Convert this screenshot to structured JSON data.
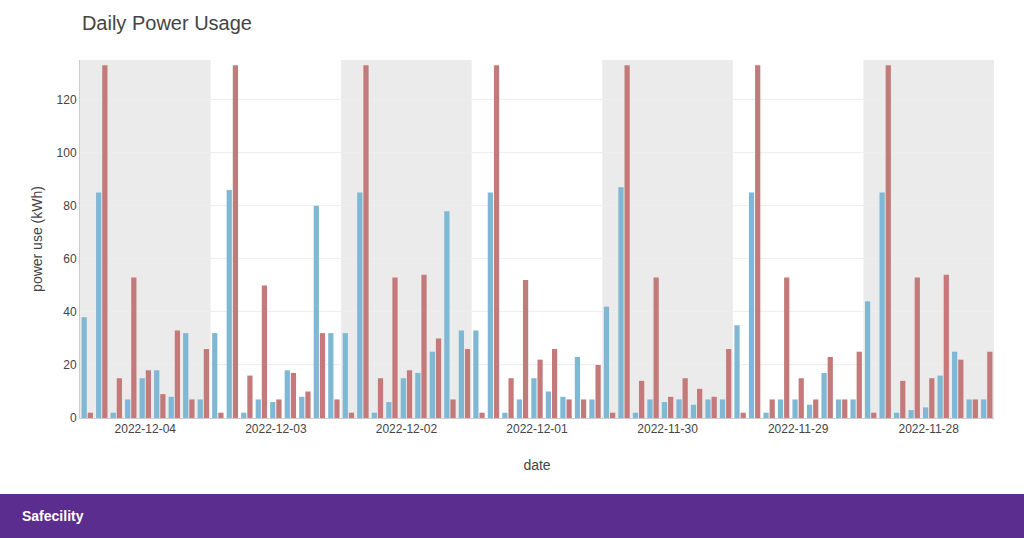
{
  "chart_data": {
    "type": "bar",
    "title": "Daily Power Usage",
    "x_label": "date",
    "y_label": "power use (kWh)",
    "annotations": [
      "Safecility"
    ],
    "categories": [
      null,
      null,
      null,
      null,
      "2022-12-04",
      null,
      null,
      null,
      null,
      null,
      null,
      null,
      null,
      "2022-12-03",
      null,
      null,
      null,
      null,
      null,
      null,
      null,
      null,
      "2022-12-02",
      null,
      null,
      null,
      null,
      null,
      null,
      null,
      null,
      "2022-12-01",
      null,
      null,
      null,
      null,
      null,
      null,
      null,
      null,
      "2022-11-30",
      null,
      null,
      null,
      null,
      null,
      null,
      null,
      null,
      "2022-11-29",
      null,
      null,
      null,
      null,
      null,
      null,
      null,
      null,
      "2022-11-28",
      null,
      null,
      null,
      null
    ],
    "series": [
      {
        "color": "#7eb8d4",
        "values": [
          38,
          85,
          2,
          7,
          15,
          18,
          8,
          32,
          7,
          32,
          86,
          2,
          7,
          6,
          18,
          8,
          80,
          32,
          32,
          85,
          2,
          6,
          15,
          17,
          25,
          78,
          33,
          33,
          85,
          2,
          7,
          15,
          10,
          8,
          23,
          7,
          42,
          87,
          2,
          7,
          6,
          7,
          5,
          7,
          7,
          35,
          85,
          2,
          7,
          7,
          5,
          17,
          7,
          7,
          44,
          85,
          2,
          3,
          4,
          16,
          25,
          7,
          7
        ]
      },
      {
        "color": "#c47a7a",
        "values": [
          2,
          133,
          15,
          53,
          18,
          9,
          33,
          7,
          26,
          2,
          133,
          16,
          50,
          7,
          17,
          10,
          32,
          7,
          2,
          133,
          15,
          53,
          18,
          54,
          30,
          7,
          26,
          2,
          133,
          15,
          52,
          22,
          26,
          7,
          7,
          20,
          2,
          133,
          14,
          53,
          8,
          15,
          11,
          8,
          26,
          2,
          133,
          7,
          53,
          15,
          7,
          23,
          7,
          25,
          2,
          133,
          14,
          53,
          15,
          54,
          22,
          7,
          25
        ]
      }
    ],
    "ylim": [
      0,
      135
    ],
    "yticks": [
      0,
      20,
      40,
      60,
      80,
      100,
      120
    ],
    "grid": true
  }
}
